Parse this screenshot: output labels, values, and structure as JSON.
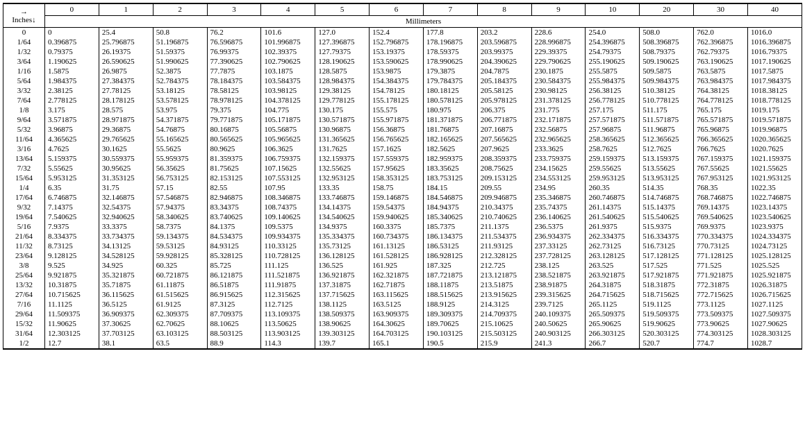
{
  "header": {
    "inches_label_top": "→",
    "inches_label_bottom": "Inches↓",
    "mm_label": "Millimeters",
    "column_headers": [
      "0",
      "1",
      "2",
      "3",
      "4",
      "5",
      "6",
      "7",
      "8",
      "9",
      "10",
      "20",
      "30",
      "40"
    ]
  },
  "row_labels": [
    "0",
    "1/64",
    "1/32",
    "3/64",
    "1/16",
    "5/64",
    "3/32",
    "7/64",
    "1/8",
    "9/64",
    "5/32",
    "11/64",
    "3/16",
    "13/64",
    "7/32",
    "15/64",
    "1/4",
    "17/64",
    "9/32",
    "19/64",
    "5/16",
    "21/64",
    "11/32",
    "23/64",
    "3/8",
    "25/64",
    "13/32",
    "27/64",
    "7/16",
    "29/64",
    "15/32",
    "31/64",
    "1/2"
  ],
  "rows": [
    [
      "0",
      "25.4",
      "50.8",
      "76.2",
      "101.6",
      "127.0",
      "152.4",
      "177.8",
      "203.2",
      "228.6",
      "254.0",
      "508.0",
      "762.0",
      "1016.0"
    ],
    [
      "0.396875",
      "25.796875",
      "51.196875",
      "76.596875",
      "101.996875",
      "127.396875",
      "152.796875",
      "178.196875",
      "203.596875",
      "228.996875",
      "254.396875",
      "508.396875",
      "762.396875",
      "1016.396875"
    ],
    [
      "0.79375",
      "26.19375",
      "51.59375",
      "76.99375",
      "102.39375",
      "127.79375",
      "153.19375",
      "178.59375",
      "203.99375",
      "229.39375",
      "254.79375",
      "508.79375",
      "762.79375",
      "1016.79375"
    ],
    [
      "1.190625",
      "26.590625",
      "51.990625",
      "77.390625",
      "102.790625",
      "128.190625",
      "153.590625",
      "178.990625",
      "204.390625",
      "229.790625",
      "255.190625",
      "509.190625",
      "763.190625",
      "1017.190625"
    ],
    [
      "1.5875",
      "26.9875",
      "52.3875",
      "77.7875",
      "103.1875",
      "128.5875",
      "153.9875",
      "179.3875",
      "204.7875",
      "230.1875",
      "255.5875",
      "509.5875",
      "763.5875",
      "1017.5875"
    ],
    [
      "1.984375",
      "27.384375",
      "52.784375",
      "78.184375",
      "103.584375",
      "128.984375",
      "154.384375",
      "179.784375",
      "205.184375",
      "230.584375",
      "255.984375",
      "509.984375",
      "763.984375",
      "1017.984375"
    ],
    [
      "2.38125",
      "27.78125",
      "53.18125",
      "78.58125",
      "103.98125",
      "129.38125",
      "154.78125",
      "180.18125",
      "205.58125",
      "230.98125",
      "256.38125",
      "510.38125",
      "764.38125",
      "1018.38125"
    ],
    [
      "2.778125",
      "28.178125",
      "53.578125",
      "78.978125",
      "104.378125",
      "129.778125",
      "155.178125",
      "180.578125",
      "205.978125",
      "231.378125",
      "256.778125",
      "510.778125",
      "764.778125",
      "1018.778125"
    ],
    [
      "3.175",
      "28.575",
      "53.975",
      "79.375",
      "104.775",
      "130.175",
      "155.575",
      "180.975",
      "206.375",
      "231.775",
      "257.175",
      "511.175",
      "765.175",
      "1019.175"
    ],
    [
      "3.571875",
      "28.971875",
      "54.371875",
      "79.771875",
      "105.171875",
      "130.571875",
      "155.971875",
      "181.371875",
      "206.771875",
      "232.171875",
      "257.571875",
      "511.571875",
      "765.571875",
      "1019.571875"
    ],
    [
      "3.96875",
      "29.36875",
      "54.76875",
      "80.16875",
      "105.56875",
      "130.96875",
      "156.36875",
      "181.76875",
      "207.16875",
      "232.56875",
      "257.96875",
      "511.96875",
      "765.96875",
      "1019.96875"
    ],
    [
      "4.365625",
      "29.765625",
      "55.165625",
      "80.565625",
      "105.965625",
      "131.365625",
      "156.765625",
      "182.165625",
      "207.565625",
      "232.965625",
      "258.365625",
      "512.365625",
      "766.365625",
      "1020.365625"
    ],
    [
      "4.7625",
      "30.1625",
      "55.5625",
      "80.9625",
      "106.3625",
      "131.7625",
      "157.1625",
      "182.5625",
      "207.9625",
      "233.3625",
      "258.7625",
      "512.7625",
      "766.7625",
      "1020.7625"
    ],
    [
      "5.159375",
      "30.559375",
      "55.959375",
      "81.359375",
      "106.759375",
      "132.159375",
      "157.559375",
      "182.959375",
      "208.359375",
      "233.759375",
      "259.159375",
      "513.159375",
      "767.159375",
      "1021.159375"
    ],
    [
      "5.55625",
      "30.95625",
      "56.35625",
      "81.75625",
      "107.15625",
      "132.55625",
      "157.95625",
      "183.35625",
      "208.75625",
      "234.15625",
      "259.55625",
      "513.55625",
      "767.55625",
      "1021.55625"
    ],
    [
      "5.953125",
      "31.353125",
      "56.753125",
      "82.153125",
      "107.553125",
      "132.953125",
      "158.353125",
      "183.753125",
      "209.153125",
      "234.553125",
      "259.953125",
      "513.953125",
      "767.953125",
      "1021.953125"
    ],
    [
      "6.35",
      "31.75",
      "57.15",
      "82.55",
      "107.95",
      "133.35",
      "158.75",
      "184.15",
      "209.55",
      "234.95",
      "260.35",
      "514.35",
      "768.35",
      "1022.35"
    ],
    [
      "6.746875",
      "32.146875",
      "57.546875",
      "82.946875",
      "108.346875",
      "133.746875",
      "159.146875",
      "184.546875",
      "209.946875",
      "235.346875",
      "260.746875",
      "514.746875",
      "768.746875",
      "1022.746875"
    ],
    [
      "7.14375",
      "32.54375",
      "57.94375",
      "83.34375",
      "108.74375",
      "134.14375",
      "159.54375",
      "184.94375",
      "210.34375",
      "235.74375",
      "261.14375",
      "515.14375",
      "769.14375",
      "1023.14375"
    ],
    [
      "7.540625",
      "32.940625",
      "58.340625",
      "83.740625",
      "109.140625",
      "134.540625",
      "159.940625",
      "185.340625",
      "210.740625",
      "236.140625",
      "261.540625",
      "515.540625",
      "769.540625",
      "1023.540625"
    ],
    [
      "7.9375",
      "33.3375",
      "58.7375",
      "84.1375",
      "109.5375",
      "134.9375",
      "160.3375",
      "185.7375",
      "211.1375",
      "236.5375",
      "261.9375",
      "515.9375",
      "769.9375",
      "1023.9375"
    ],
    [
      "8.334375",
      "33.734375",
      "59.134375",
      "84.534375",
      "109.934375",
      "135.334375",
      "160.734375",
      "186.134375",
      "211.534375",
      "236.934375",
      "262.334375",
      "516.334375",
      "770.334375",
      "1024.334375"
    ],
    [
      "8.73125",
      "34.13125",
      "59.53125",
      "84.93125",
      "110.33125",
      "135.73125",
      "161.13125",
      "186.53125",
      "211.93125",
      "237.33125",
      "262.73125",
      "516.73125",
      "770.73125",
      "1024.73125"
    ],
    [
      "9.128125",
      "34.528125",
      "59.928125",
      "85.328125",
      "110.728125",
      "136.128125",
      "161.528125",
      "186.928125",
      "212.328125",
      "237.728125",
      "263.128125",
      "517.128125",
      "771.128125",
      "1025.128125"
    ],
    [
      "9.525",
      "34.925",
      "60.325",
      "85.725",
      "111.125",
      "136.525",
      "161.925",
      "187.325",
      "212.725",
      "238.125",
      "263.525",
      "517.525",
      "771.525",
      "1025.525"
    ],
    [
      "9.921875",
      "35.321875",
      "60.721875",
      "86.121875",
      "111.521875",
      "136.921875",
      "162.321875",
      "187.721875",
      "213.121875",
      "238.521875",
      "263.921875",
      "517.921875",
      "771.921875",
      "1025.921875"
    ],
    [
      "10.31875",
      "35.71875",
      "61.11875",
      "86.51875",
      "111.91875",
      "137.31875",
      "162.71875",
      "188.11875",
      "213.51875",
      "238.91875",
      "264.31875",
      "518.31875",
      "772.31875",
      "1026.31875"
    ],
    [
      "10.715625",
      "36.115625",
      "61.515625",
      "86.915625",
      "112.315625",
      "137.715625",
      "163.115625",
      "188.515625",
      "213.915625",
      "239.315625",
      "264.715625",
      "518.715625",
      "772.715625",
      "1026.715625"
    ],
    [
      "11.1125",
      "36.5125",
      "61.9125",
      "87.3125",
      "112.7125",
      "138.1125",
      "163.5125",
      "188.9125",
      "214.3125",
      "239.7125",
      "265.1125",
      "519.1125",
      "773.1125",
      "1027.1125"
    ],
    [
      "11.509375",
      "36.909375",
      "62.309375",
      "87.709375",
      "113.109375",
      "138.509375",
      "163.909375",
      "189.309375",
      "214.709375",
      "240.109375",
      "265.509375",
      "519.509375",
      "773.509375",
      "1027.509375"
    ],
    [
      "11.90625",
      "37.30625",
      "62.70625",
      "88.10625",
      "113.50625",
      "138.90625",
      "164.30625",
      "189.70625",
      "215.10625",
      "240.50625",
      "265.90625",
      "519.90625",
      "773.90625",
      "1027.90625"
    ],
    [
      "12.303125",
      "37.703125",
      "63.103125",
      "88.503125",
      "113.903125",
      "139.303125",
      "164.703125",
      "190.103125",
      "215.503125",
      "240.903125",
      "266.303125",
      "520.303125",
      "774.303125",
      "1028.303125"
    ],
    [
      "12.7",
      "38.1",
      "63.5",
      "88.9",
      "114.3",
      "139.7",
      "165.1",
      "190.5",
      "215.9",
      "241.3",
      "266.7",
      "520.7",
      "774.7",
      "1028.7"
    ]
  ],
  "styling": {
    "font_family": "Times New Roman",
    "font_size_pt": 8,
    "text_color": "#000000",
    "background_color": "#ffffff",
    "border_color": "#000000",
    "num_data_columns": 14,
    "num_data_rows": 33
  }
}
